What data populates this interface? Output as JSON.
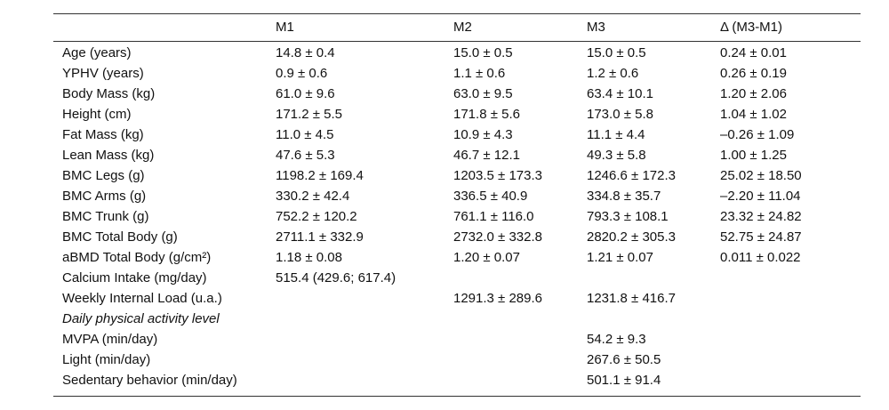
{
  "table": {
    "header": [
      "M1",
      "M2",
      "M3",
      "Δ (M3-M1)"
    ],
    "rows": [
      {
        "label": "Age (years)",
        "m1": "14.8 ± 0.4",
        "m2": "15.0 ± 0.5",
        "m3": "15.0 ± 0.5",
        "delta": "0.24 ± 0.01"
      },
      {
        "label": "YPHV (years)",
        "m1": "0.9 ± 0.6",
        "m2": "1.1 ± 0.6",
        "m3": "1.2 ± 0.6",
        "delta": "0.26 ± 0.19"
      },
      {
        "label": "Body Mass (kg)",
        "m1": "61.0 ± 9.6",
        "m2": "63.0 ± 9.5",
        "m3": "63.4 ± 10.1",
        "delta": "1.20 ± 2.06"
      },
      {
        "label": "Height (cm)",
        "m1": "171.2 ± 5.5",
        "m2": "171.8 ± 5.6",
        "m3": "173.0 ± 5.8",
        "delta": "1.04 ± 1.02"
      },
      {
        "label": "Fat Mass (kg)",
        "m1": "11.0 ± 4.5",
        "m2": "10.9 ± 4.3",
        "m3": "11.1 ± 4.4",
        "delta": "–0.26 ± 1.09"
      },
      {
        "label": "Lean Mass (kg)",
        "m1": "47.6 ± 5.3",
        "m2": "46.7 ± 12.1",
        "m3": "49.3 ± 5.8",
        "delta": "1.00 ± 1.25"
      },
      {
        "label": "BMC Legs (g)",
        "m1": "1198.2 ± 169.4",
        "m2": "1203.5 ± 173.3",
        "m3": "1246.6 ± 172.3",
        "delta": "25.02 ± 18.50"
      },
      {
        "label": "BMC Arms (g)",
        "m1": "330.2 ± 42.4",
        "m2": "336.5 ± 40.9",
        "m3": "334.8 ± 35.7",
        "delta": "–2.20 ± 11.04"
      },
      {
        "label": "BMC Trunk (g)",
        "m1": "752.2 ± 120.2",
        "m2": "761.1 ± 116.0",
        "m3": "793.3 ± 108.1",
        "delta": "23.32 ± 24.82"
      },
      {
        "label": "BMC Total Body (g)",
        "m1": "2711.1 ± 332.9",
        "m2": "2732.0 ± 332.8",
        "m3": "2820.2 ± 305.3",
        "delta": "52.75 ± 24.87"
      },
      {
        "label": "aBMD Total Body (g/cm²)",
        "m1": "1.18 ± 0.08",
        "m2": "1.20 ± 0.07",
        "m3": "1.21 ± 0.07",
        "delta": "0.011 ± 0.022"
      },
      {
        "label": "Calcium Intake (mg/day)",
        "m1": "515.4 (429.6; 617.4)"
      },
      {
        "label": "Weekly Internal Load (u.a.)",
        "m2": "1291.3 ± 289.6",
        "m3": "1231.8 ± 416.7"
      },
      {
        "section": "Daily physical activity level"
      },
      {
        "label": "MVPA (min/day)",
        "m3": "54.2 ± 9.3"
      },
      {
        "label": "Light (min/day)",
        "m3": "267.6 ± 50.5"
      },
      {
        "label": "Sedentary behavior (min/day)",
        "m3": "501.1 ± 91.4"
      }
    ]
  }
}
